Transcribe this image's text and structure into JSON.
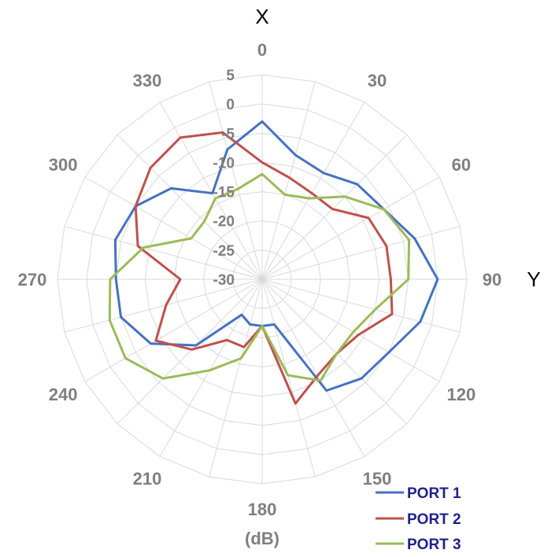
{
  "chart_data": {
    "type": "radar",
    "axis_top_label": "X",
    "axis_right_label": "Y",
    "unit_label": "(dB)",
    "angle_labels": [
      "0",
      "30",
      "60",
      "90",
      "120",
      "150",
      "180",
      "210",
      "240",
      "270",
      "300",
      "330"
    ],
    "angles_deg": [
      0,
      30,
      60,
      90,
      120,
      150,
      180,
      210,
      240,
      270,
      300,
      330
    ],
    "angle_step_deg": 15,
    "radial_ticks": [
      "5",
      "0",
      "-5",
      "-10",
      "-15",
      "-20",
      "-25",
      "-30"
    ],
    "rlim": [
      -30,
      5
    ],
    "grid": true,
    "legend_position": "bottom-right",
    "series": [
      {
        "name": "PORT 1",
        "color": "#4472c4",
        "values": [
          -3,
          -8,
          -9,
          -7,
          -6,
          -3,
          0,
          -2,
          -5,
          -6,
          -8,
          -22,
          -22,
          -22,
          -23,
          -14,
          -8,
          -5,
          -5,
          -4,
          -5,
          -8,
          -13,
          -7
        ]
      },
      {
        "name": "PORT 2",
        "color": "#c0504d",
        "values": [
          -10,
          -12,
          -13,
          -13,
          -9,
          -8,
          -8,
          -7,
          -11,
          -12,
          -11,
          -8,
          -22,
          -18,
          -18,
          -13,
          -9,
          -13,
          -16,
          -8,
          -5,
          -3,
          -2,
          -4
        ]
      },
      {
        "name": "PORT 3",
        "color": "#9bbb59",
        "values": [
          -12,
          -15,
          -14,
          -10,
          -6,
          -4,
          -5,
          -10,
          -12,
          -12,
          -10,
          -13,
          -22,
          -16,
          -12,
          -6,
          -3,
          -3,
          -4,
          -9,
          -16,
          -16,
          -14,
          -14
        ]
      }
    ]
  }
}
